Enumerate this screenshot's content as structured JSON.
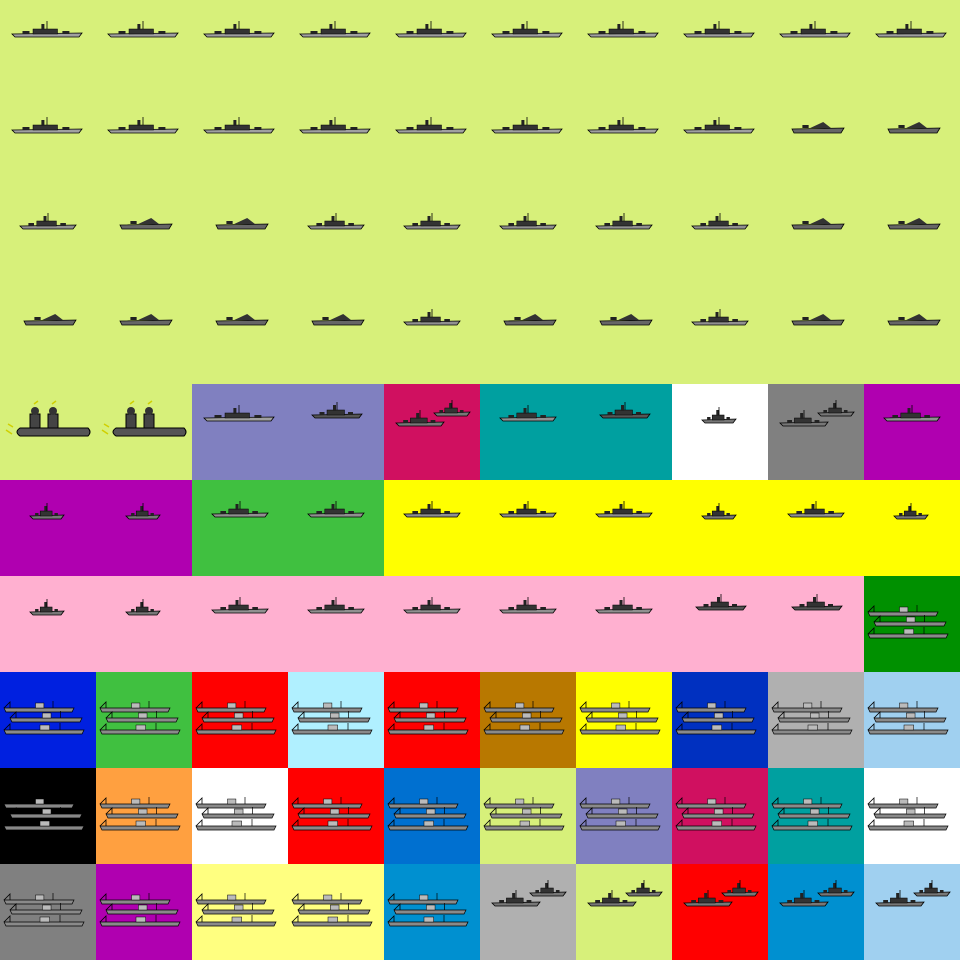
{
  "sheet": {
    "columns": 10,
    "rows": 10,
    "cells": [
      [
        "#d7f07a",
        "battleship-icon"
      ],
      [
        "#d7f07a",
        "battleship-icon"
      ],
      [
        "#d7f07a",
        "battleship-icon"
      ],
      [
        "#d7f07a",
        "battleship-icon"
      ],
      [
        "#d7f07a",
        "battleship-icon"
      ],
      [
        "#d7f07a",
        "battleship-icon"
      ],
      [
        "#d7f07a",
        "battleship-icon"
      ],
      [
        "#d7f07a",
        "battleship-icon"
      ],
      [
        "#d7f07a",
        "battleship-icon"
      ],
      [
        "#d7f07a",
        "battleship-icon"
      ],
      [
        "#d7f07a",
        "battleship-icon"
      ],
      [
        "#d7f07a",
        "battleship-icon"
      ],
      [
        "#d7f07a",
        "battleship-icon"
      ],
      [
        "#d7f07a",
        "battleship-icon"
      ],
      [
        "#d7f07a",
        "battleship-icon"
      ],
      [
        "#d7f07a",
        "battleship-icon"
      ],
      [
        "#d7f07a",
        "battleship-icon"
      ],
      [
        "#d7f07a",
        "battleship-icon"
      ],
      [
        "#d7f07a",
        "carrier-icon"
      ],
      [
        "#d7f07a",
        "carrier-icon"
      ],
      [
        "#d7f07a",
        "cruiser-icon"
      ],
      [
        "#d7f07a",
        "carrier-icon"
      ],
      [
        "#d7f07a",
        "carrier-icon"
      ],
      [
        "#d7f07a",
        "cruiser-icon"
      ],
      [
        "#d7f07a",
        "cruiser-icon"
      ],
      [
        "#d7f07a",
        "cruiser-icon"
      ],
      [
        "#d7f07a",
        "cruiser-icon"
      ],
      [
        "#d7f07a",
        "cruiser-icon"
      ],
      [
        "#d7f07a",
        "carrier-icon"
      ],
      [
        "#d7f07a",
        "carrier-icon"
      ],
      [
        "#d7f07a",
        "carrier-icon"
      ],
      [
        "#d7f07a",
        "carrier-icon"
      ],
      [
        "#d7f07a",
        "carrier-icon"
      ],
      [
        "#d7f07a",
        "carrier-icon"
      ],
      [
        "#d7f07a",
        "cruiser-icon"
      ],
      [
        "#d7f07a",
        "carrier-icon"
      ],
      [
        "#d7f07a",
        "carrier-icon"
      ],
      [
        "#d7f07a",
        "cruiser-icon"
      ],
      [
        "#d7f07a",
        "carrier-icon"
      ],
      [
        "#d7f07a",
        "carrier-icon"
      ],
      [
        "#d7f07a",
        "submarine-icon"
      ],
      [
        "#d7f07a",
        "submarine-icon"
      ],
      [
        "#8080c0",
        "battleship-icon"
      ],
      [
        "#8080c0",
        "destroyer-icon"
      ],
      [
        "#d01060",
        "ship-pair-icon"
      ],
      [
        "#00a0a0",
        "cruiser-icon"
      ],
      [
        "#00a0a0",
        "destroyer-icon"
      ],
      [
        "#ffffff",
        "small-ship-icon"
      ],
      [
        "#808080",
        "ship-pair-icon"
      ],
      [
        "#b000b0",
        "cruiser-icon"
      ],
      [
        "#b000b0",
        "small-ship-icon"
      ],
      [
        "#b000b0",
        "small-ship-icon"
      ],
      [
        "#40c040",
        "cruiser-icon"
      ],
      [
        "#40c040",
        "cruiser-icon"
      ],
      [
        "#ffff00",
        "cruiser-icon"
      ],
      [
        "#ffff00",
        "cruiser-icon"
      ],
      [
        "#ffff00",
        "cruiser-icon"
      ],
      [
        "#ffff00",
        "small-ship-icon"
      ],
      [
        "#ffff00",
        "cruiser-icon"
      ],
      [
        "#ffff00",
        "small-ship-icon"
      ],
      [
        "#ffb0d0",
        "small-ship-icon"
      ],
      [
        "#ffb0d0",
        "small-ship-icon"
      ],
      [
        "#ffb0d0",
        "cruiser-icon"
      ],
      [
        "#ffb0d0",
        "cruiser-icon"
      ],
      [
        "#ffb0d0",
        "cruiser-icon"
      ],
      [
        "#ffb0d0",
        "cruiser-icon"
      ],
      [
        "#ffb0d0",
        "cruiser-icon"
      ],
      [
        "#ffb0d0",
        "destroyer-icon"
      ],
      [
        "#ffb0d0",
        "destroyer-icon"
      ],
      [
        "#009000",
        "tanker-convoy-icon"
      ],
      [
        "#0020e0",
        "tanker-convoy-icon"
      ],
      [
        "#40c040",
        "tanker-convoy-icon"
      ],
      [
        "#ff0000",
        "tanker-convoy-icon"
      ],
      [
        "#b0f0ff",
        "tanker-convoy-icon"
      ],
      [
        "#ff0000",
        "tanker-convoy-icon"
      ],
      [
        "#b87800",
        "tanker-convoy-icon"
      ],
      [
        "#ffff00",
        "tanker-convoy-icon"
      ],
      [
        "#0030c0",
        "tanker-convoy-icon"
      ],
      [
        "#b0b0b0",
        "tanker-convoy-icon"
      ],
      [
        "#a0d0f0",
        "tanker-convoy-icon"
      ],
      [
        "#000000",
        "tanker-convoy-icon"
      ],
      [
        "#ffa040",
        "tanker-convoy-icon"
      ],
      [
        "#ffffff",
        "tanker-convoy-icon"
      ],
      [
        "#ff0000",
        "tanker-convoy-icon"
      ],
      [
        "#0070d0",
        "tanker-convoy-icon"
      ],
      [
        "#d7f07a",
        "tanker-convoy-icon"
      ],
      [
        "#8080c0",
        "tanker-convoy-icon"
      ],
      [
        "#d01060",
        "tanker-convoy-icon"
      ],
      [
        "#00a0a0",
        "tanker-convoy-icon"
      ],
      [
        "#ffffff",
        "tanker-convoy-icon"
      ],
      [
        "#808080",
        "tanker-convoy-icon"
      ],
      [
        "#b000b0",
        "tanker-convoy-icon"
      ],
      [
        "#ffff80",
        "tanker-convoy-icon"
      ],
      [
        "#ffff80",
        "tanker-convoy-icon"
      ],
      [
        "#0090d0",
        "tanker-convoy-icon"
      ],
      [
        "#b0b0b0",
        "ship-pair-icon"
      ],
      [
        "#d7f07a",
        "ship-pair-icon"
      ],
      [
        "#ff0000",
        "ship-pair-icon"
      ],
      [
        "#0090d0",
        "ship-pair-icon"
      ],
      [
        "#a0d0f0",
        "ship-pair-icon"
      ]
    ]
  }
}
